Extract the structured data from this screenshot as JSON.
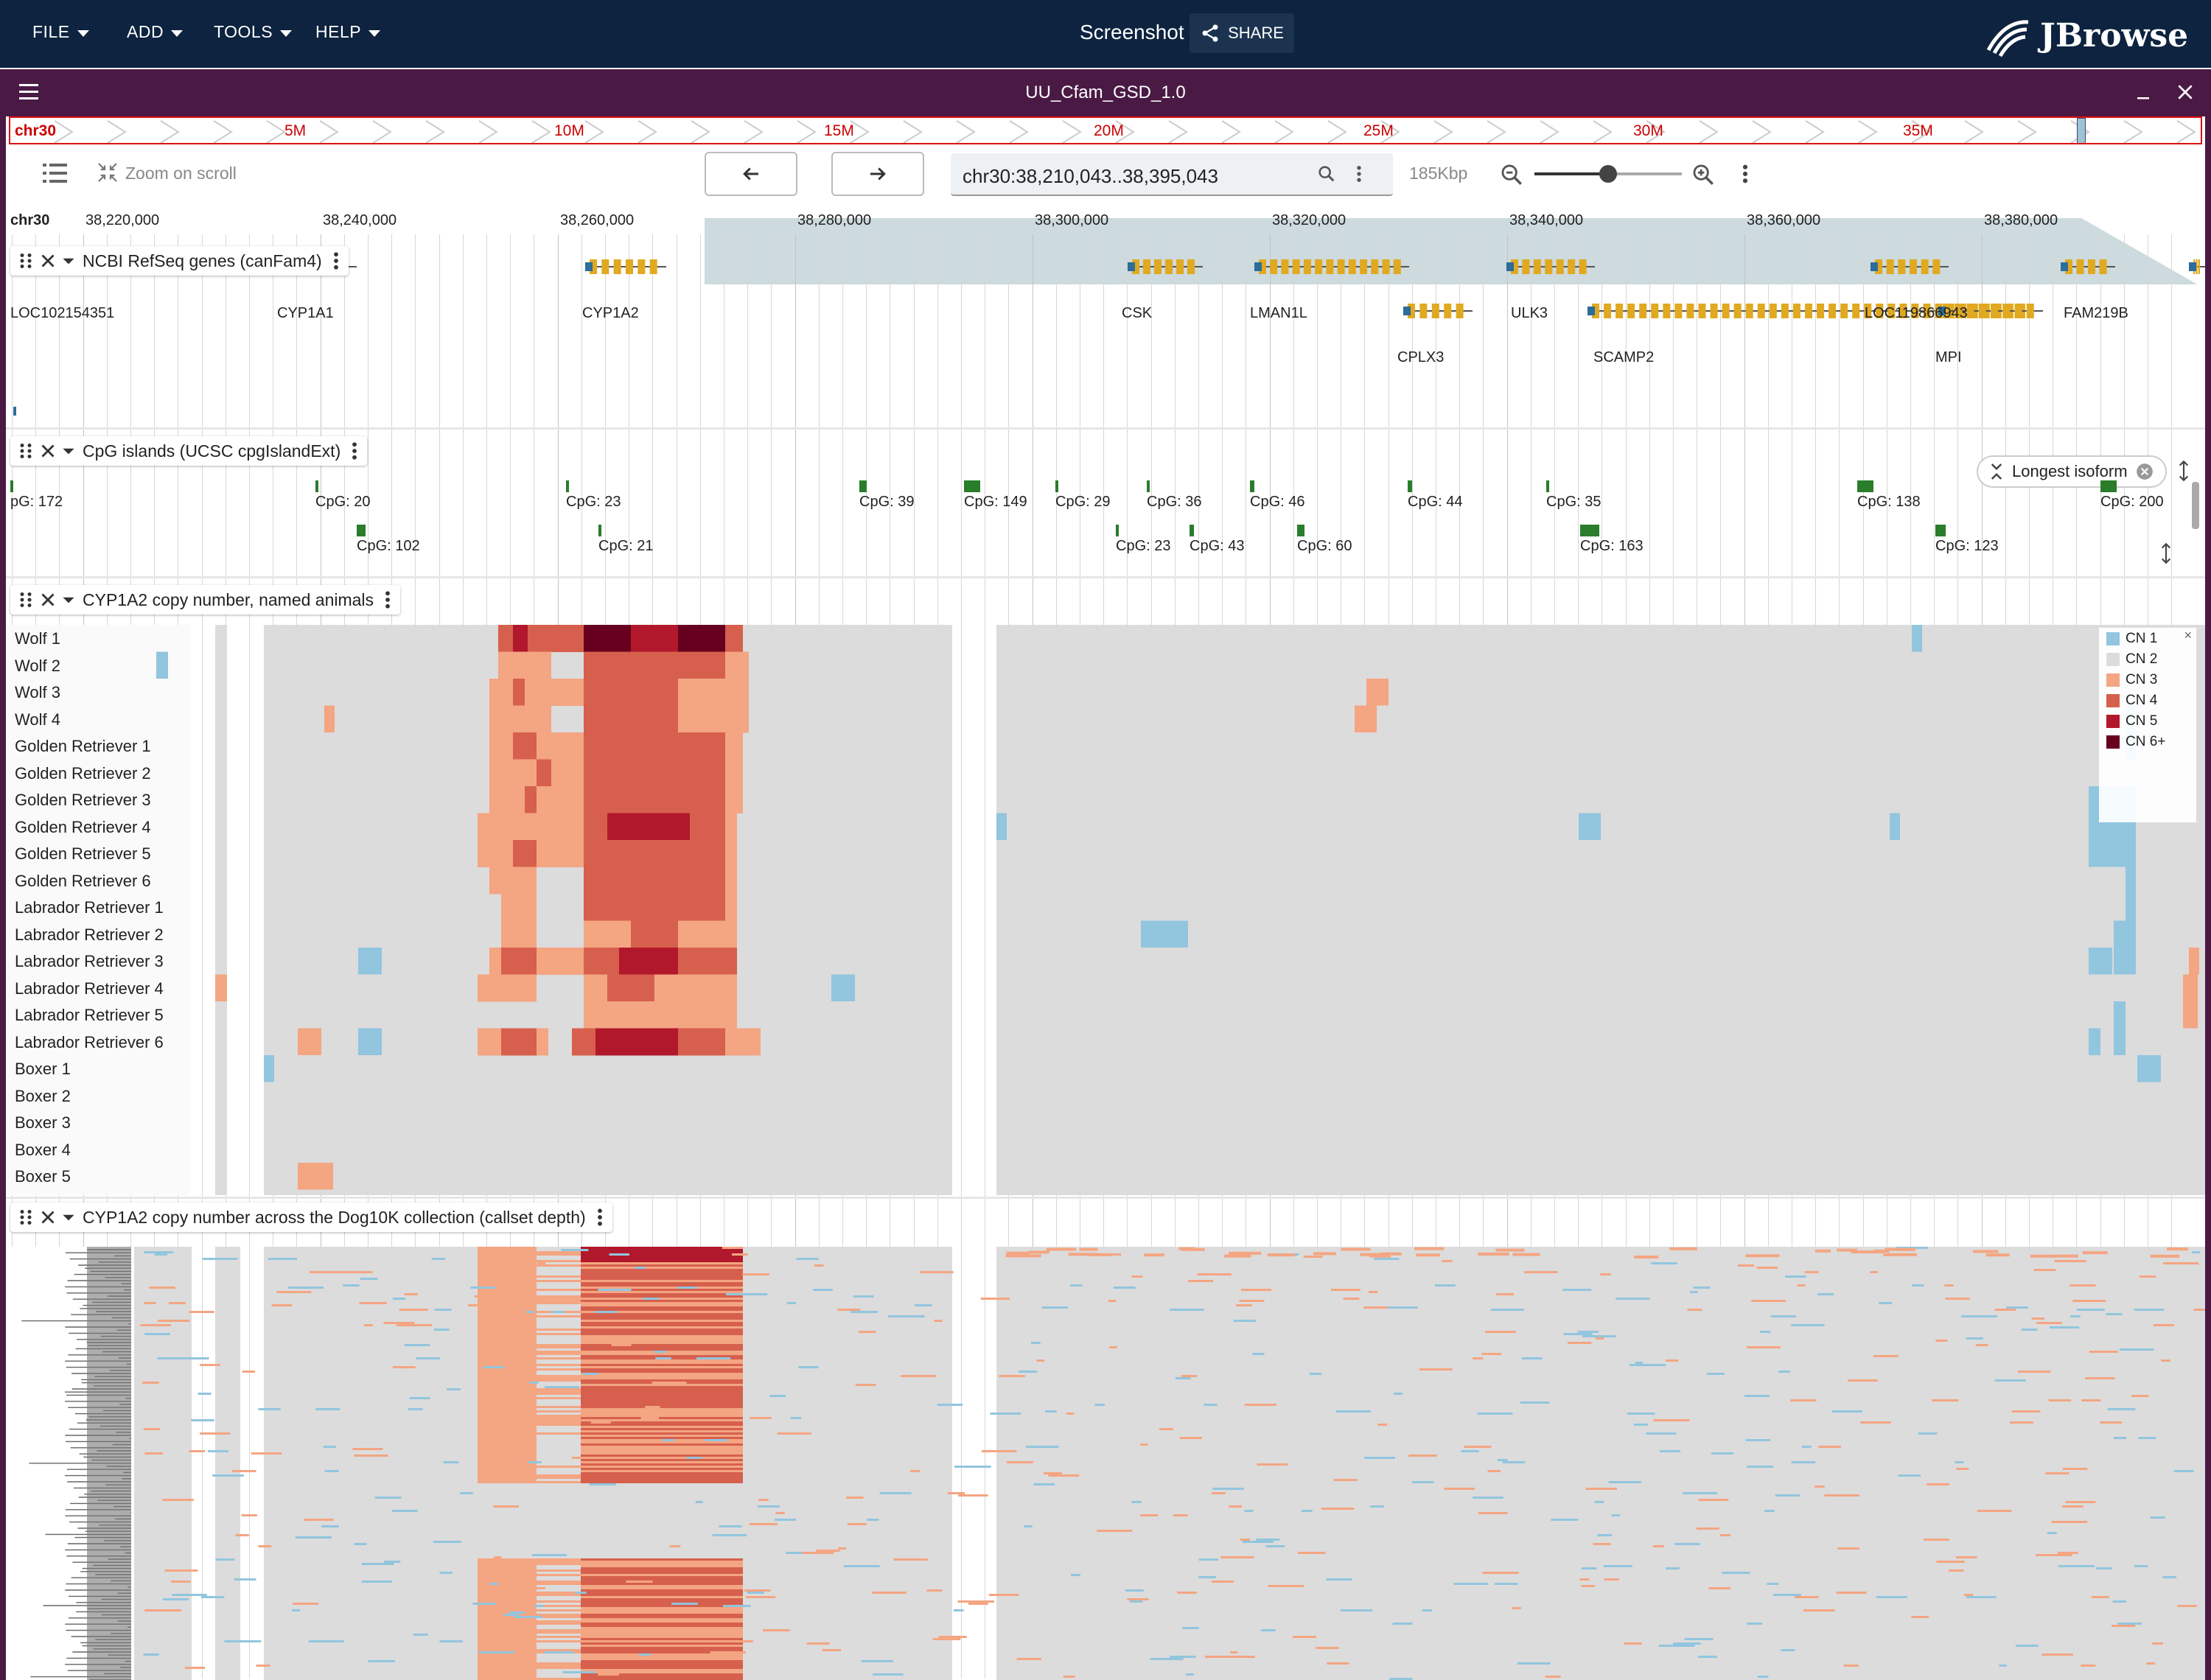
{
  "appbar": {
    "menus": [
      {
        "label": "FILE"
      },
      {
        "label": "ADD"
      },
      {
        "label": "TOOLS"
      },
      {
        "label": "HELP"
      }
    ],
    "screenshot_label": "Screenshot",
    "share_label": "SHARE",
    "logo_text": "JBrowse"
  },
  "view": {
    "title": "UU_Cfam_GSD_1.0",
    "overview": {
      "chromosome": "chr30",
      "labels": [
        "5M",
        "10M",
        "15M",
        "20M",
        "25M",
        "30M",
        "35M"
      ]
    },
    "toolbar": {
      "zoom_on_scroll_label": "Zoom on scroll",
      "location": "chr30:38,210,043..38,395,043",
      "span": "185Kbp",
      "zoom_level": 0.5
    },
    "ruler": {
      "chromosome": "chr30",
      "ticks": [
        "38,220,000",
        "38,240,000",
        "38,260,000",
        "38,280,000",
        "38,300,000",
        "38,320,000",
        "38,340,000",
        "38,360,000",
        "38,380,000"
      ]
    }
  },
  "tracks": {
    "genes": {
      "title": "NCBI RefSeq genes (canFam4)",
      "genes": [
        "LOC102154351",
        "CYP1A1",
        "CYP1A2",
        "CSK",
        "LMAN1L",
        "ULK3",
        "LOC119866943",
        "FAM219B",
        "CPLX3",
        "SCAMP2",
        "MPI"
      ],
      "isoform_chip": "Longest isoform"
    },
    "cpg": {
      "title": "CpG islands (UCSC cpgIslandExt)",
      "labels_row1": [
        "pG: 172",
        "CpG: 20",
        "CpG: 23",
        "CpG: 39",
        "CpG: 149",
        "CpG: 29",
        "CpG: 36",
        "CpG: 46",
        "CpG: 44",
        "CpG: 35",
        "CpG: 138",
        "CpG: 200"
      ],
      "labels_row2": [
        "CpG: 102",
        "CpG: 21",
        "CpG: 23",
        "CpG: 43",
        "CpG: 60",
        "CpG: 163",
        "CpG: 123"
      ]
    },
    "named": {
      "title": "CYP1A2 copy number, named animals",
      "samples": [
        "Wolf 1",
        "Wolf 2",
        "Wolf 3",
        "Wolf 4",
        "Golden Retriever 1",
        "Golden Retriever 2",
        "Golden Retriever 3",
        "Golden Retriever 4",
        "Golden Retriever 5",
        "Golden Retriever 6",
        "Labrador Retriever 1",
        "Labrador Retriever 2",
        "Labrador Retriever 3",
        "Labrador Retriever 4",
        "Labrador Retriever 5",
        "Labrador Retriever 6",
        "Boxer 1",
        "Boxer 2",
        "Boxer 3",
        "Boxer 4",
        "Boxer 5"
      ],
      "legend": [
        {
          "label": "CN 1",
          "color": "#92c5de"
        },
        {
          "label": "CN 2",
          "color": "#dcdcdc"
        },
        {
          "label": "CN 3",
          "color": "#f4a582"
        },
        {
          "label": "CN 4",
          "color": "#d6604d"
        },
        {
          "label": "CN 5",
          "color": "#b2182b"
        },
        {
          "label": "CN 6+",
          "color": "#67001f"
        }
      ],
      "legend_close": "×"
    },
    "dog10k": {
      "title": "CYP1A2 copy number across the Dog10K collection (callset depth)"
    }
  }
}
